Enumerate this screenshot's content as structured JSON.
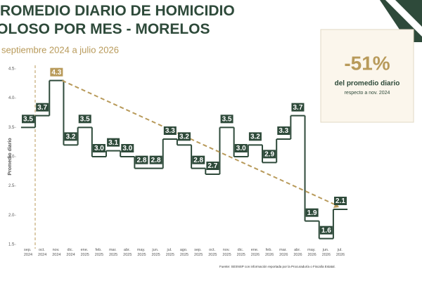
{
  "chart_data": {
    "type": "step",
    "title": "PROMEDIO DIARIO DE HOMICIDIO DOLOSO POR MES - MORELOS",
    "subtitle": "septiembre 2024 a julio 2026",
    "y_label": "Promedio diario",
    "categories": [
      "sep. 2024",
      "oct. 2024",
      "nov. 2024",
      "dic. 2024",
      "ene. 2025",
      "feb. 2025",
      "mar. 2025",
      "abr. 2025",
      "may. 2025",
      "jun. 2025",
      "jul. 2025",
      "ago. 2025",
      "sep. 2025",
      "oct. 2025",
      "nov. 2025",
      "dic. 2025",
      "ene. 2026",
      "feb. 2026",
      "mar. 2026",
      "abr. 2026",
      "may. 2026",
      "jun. 2026",
      "jul. 2026"
    ],
    "values": [
      3.5,
      3.7,
      4.3,
      3.2,
      3.5,
      3.0,
      3.1,
      3.0,
      2.8,
      2.8,
      3.3,
      3.2,
      2.8,
      2.7,
      3.5,
      3.0,
      3.2,
      2.9,
      3.3,
      3.7,
      1.9,
      1.6,
      2.1
    ],
    "value_labels": [
      "3.5",
      "3.7",
      "4.3",
      "3.2",
      "3.5",
      "3.0",
      "3.1",
      "3.0",
      "2.8",
      "2.8",
      "3.3",
      "3.2",
      "2.8",
      "2.7",
      "3.5",
      "3.0",
      "3.2",
      "2.9",
      "3.3",
      "3.7",
      "1.9",
      "1.6",
      "2.1"
    ],
    "color": "#2e4a3a",
    "highlight_color": "#b89a5a",
    "ylim": [
      1.5,
      4.5
    ],
    "yticks": [
      1.5,
      {
        "value": 2,
        "label": "2.0"
      },
      2.5,
      {
        "value": 3,
        "label": "3.0"
      },
      3.5,
      {
        "value": 4,
        "label": "4.0"
      },
      4.5
    ],
    "callout": {
      "value": "-51%",
      "line1": "del promedio diario",
      "line2": "respecto a nov. 2024"
    },
    "source": "Fuente: SESNSP con información reportada por la Procuraduría o Fiscalía Estatal."
  }
}
